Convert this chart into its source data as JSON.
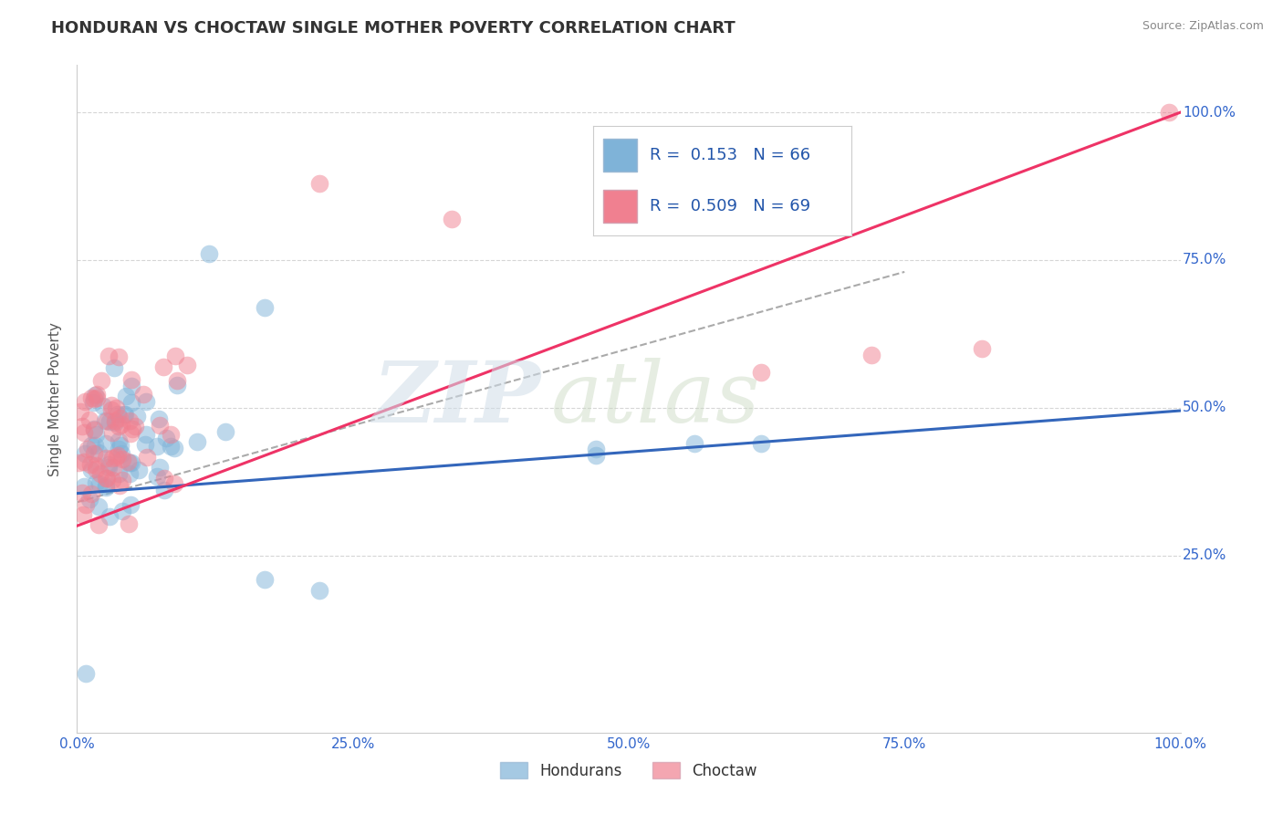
{
  "title": "HONDURAN VS CHOCTAW SINGLE MOTHER POVERTY CORRELATION CHART",
  "source": "Source: ZipAtlas.com",
  "ylabel": "Single Mother Poverty",
  "watermark_zip": "ZIP",
  "watermark_atlas": "atlas",
  "xlim": [
    0.0,
    1.0
  ],
  "ylim": [
    -0.05,
    1.08
  ],
  "xticks": [
    0.0,
    0.25,
    0.5,
    0.75,
    1.0
  ],
  "xtick_labels": [
    "0.0%",
    "25.0%",
    "50.0%",
    "75.0%",
    "100.0%"
  ],
  "yticks": [
    0.25,
    0.5,
    0.75,
    1.0
  ],
  "ytick_labels": [
    "25.0%",
    "50.0%",
    "75.0%",
    "100.0%"
  ],
  "grid_color": "#cccccc",
  "background_color": "#ffffff",
  "honduran_color": "#7fb3d8",
  "choctaw_color": "#f08090",
  "honduran_line_color": "#3366bb",
  "choctaw_line_color": "#ee3366",
  "dashed_line_color": "#aaaaaa",
  "title_fontsize": 13,
  "axis_label_fontsize": 11,
  "tick_fontsize": 11,
  "legend_fontsize": 13,
  "R_honduran": 0.153,
  "N_honduran": 66,
  "R_choctaw": 0.509,
  "N_choctaw": 69,
  "hon_line_x0": 0.0,
  "hon_line_y0": 0.355,
  "hon_line_x1": 1.0,
  "hon_line_y1": 0.495,
  "cho_line_x0": 0.0,
  "cho_line_y0": 0.3,
  "cho_line_x1": 1.0,
  "cho_line_y1": 1.0,
  "dash_line_x0": 0.0,
  "dash_line_y0": 0.34,
  "dash_line_x1": 0.75,
  "dash_line_y1": 0.73
}
